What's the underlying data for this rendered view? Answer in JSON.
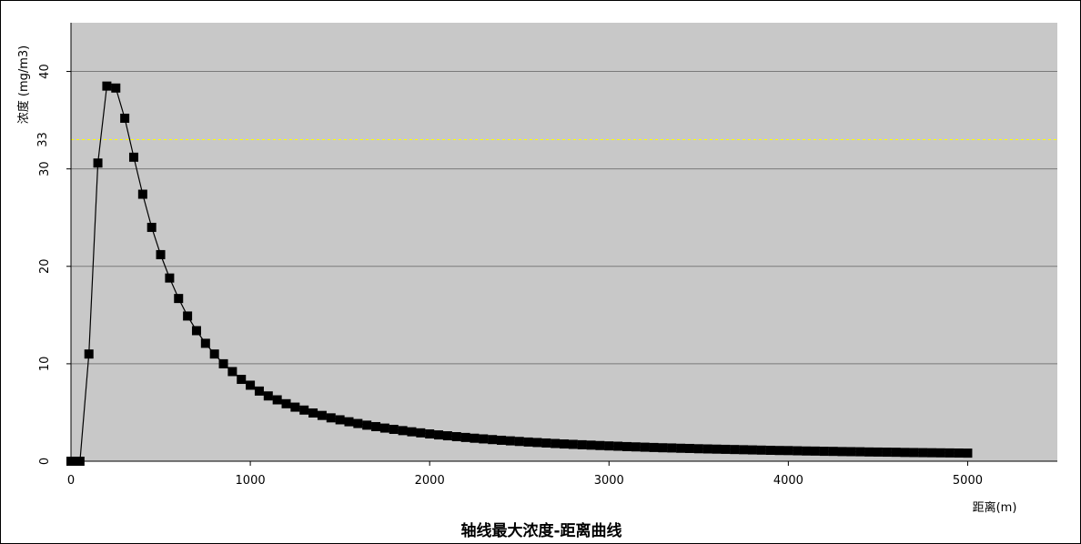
{
  "chart_data": {
    "type": "line",
    "title": "轴线最大浓度-距离曲线",
    "xlabel": "距离(m)",
    "ylabel": "浓度 (mg/m3)",
    "xlim": [
      0,
      5500
    ],
    "ylim": [
      0,
      45
    ],
    "xticks": [
      0,
      1000,
      2000,
      3000,
      4000,
      5000
    ],
    "yticks": [
      0,
      10,
      20,
      30,
      40
    ],
    "grid": true,
    "reference_line": {
      "value": 33,
      "label": "33",
      "color": "#ffff00"
    },
    "colors": {
      "plot_background": "#c8c8c8",
      "gridline": "#7a7a7a",
      "series": "#000000",
      "reference": "#ffff00"
    },
    "series": [
      {
        "x": [
          0,
          50,
          100,
          150,
          200,
          250,
          300,
          350,
          400,
          450,
          500,
          550,
          600,
          650,
          700,
          750,
          800,
          850,
          900,
          950,
          1000,
          1050,
          1100,
          1150,
          1200,
          1250,
          1300,
          1350,
          1400,
          1450,
          1500,
          1550,
          1600,
          1650,
          1700,
          1750,
          1800,
          1850,
          1900,
          1950,
          2000,
          2050,
          2100,
          2150,
          2200,
          2250,
          2300,
          2350,
          2400,
          2450,
          2500,
          2550,
          2600,
          2650,
          2700,
          2750,
          2800,
          2850,
          2900,
          2950,
          3000,
          3050,
          3100,
          3150,
          3200,
          3250,
          3300,
          3350,
          3400,
          3450,
          3500,
          3550,
          3600,
          3650,
          3700,
          3750,
          3800,
          3850,
          3900,
          3950,
          4000,
          4050,
          4100,
          4150,
          4200,
          4250,
          4300,
          4350,
          4400,
          4450,
          4500,
          4550,
          4600,
          4650,
          4700,
          4750,
          4800,
          4850,
          4900,
          4950,
          5000
        ],
        "values": [
          0,
          0,
          11.0,
          30.6,
          38.5,
          38.3,
          35.2,
          31.2,
          27.4,
          24.0,
          21.2,
          18.8,
          16.7,
          14.9,
          13.4,
          12.1,
          11.0,
          10.0,
          9.2,
          8.4,
          7.8,
          7.2,
          6.7,
          6.3,
          5.9,
          5.55,
          5.25,
          4.95,
          4.7,
          4.45,
          4.25,
          4.05,
          3.87,
          3.7,
          3.55,
          3.4,
          3.27,
          3.14,
          3.02,
          2.91,
          2.8,
          2.7,
          2.61,
          2.52,
          2.44,
          2.36,
          2.29,
          2.22,
          2.15,
          2.09,
          2.03,
          1.97,
          1.92,
          1.87,
          1.82,
          1.77,
          1.73,
          1.69,
          1.65,
          1.61,
          1.57,
          1.54,
          1.5,
          1.47,
          1.44,
          1.41,
          1.38,
          1.36,
          1.33,
          1.31,
          1.28,
          1.26,
          1.24,
          1.22,
          1.2,
          1.18,
          1.16,
          1.14,
          1.12,
          1.1,
          1.09,
          1.07,
          1.05,
          1.04,
          1.02,
          1.01,
          0.99,
          0.98,
          0.97,
          0.95,
          0.94,
          0.93,
          0.92,
          0.9,
          0.89,
          0.88,
          0.87,
          0.86,
          0.85,
          0.84,
          0.83
        ]
      }
    ]
  }
}
